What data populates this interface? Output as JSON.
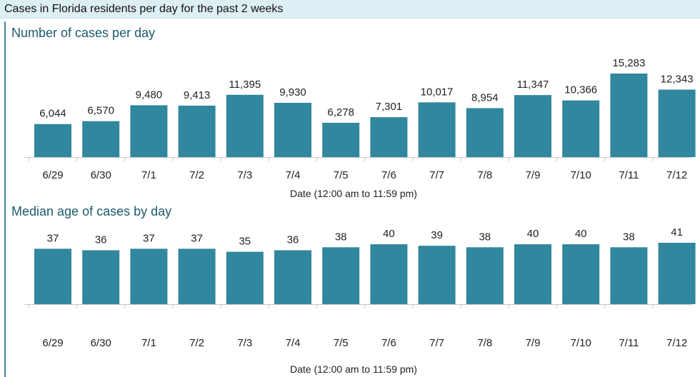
{
  "header": {
    "title": "Cases in Florida residents per day for the past 2 weeks"
  },
  "colors": {
    "bar": "#31879d",
    "axis": "#c8c8c8",
    "header_bg": "#ddeef4",
    "title": "#1d5a6e"
  },
  "chart_data": [
    {
      "type": "bar",
      "title": "Number of cases per day",
      "xlabel": "Date (12:00 am to 11:59 pm)",
      "ylabel": "",
      "categories": [
        "6/29",
        "6/30",
        "7/1",
        "7/2",
        "7/3",
        "7/4",
        "7/5",
        "7/6",
        "7/7",
        "7/8",
        "7/9",
        "7/10",
        "7/11",
        "7/12"
      ],
      "values": [
        6044,
        6570,
        9480,
        9413,
        11395,
        9930,
        6278,
        7301,
        10017,
        8954,
        11347,
        10366,
        15283,
        12343
      ],
      "labels": [
        "6,044",
        "6,570",
        "9,480",
        "9,413",
        "11,395",
        "9,930",
        "6,278",
        "7,301",
        "10,017",
        "8,954",
        "11,347",
        "10,366",
        "15,283",
        "12,343"
      ],
      "ylim": [
        0,
        15283
      ],
      "grid": false,
      "legend": "none"
    },
    {
      "type": "bar",
      "title": "Median age of cases by day",
      "xlabel": "Date (12:00 am to 11:59 pm)",
      "ylabel": "",
      "categories": [
        "6/29",
        "6/30",
        "7/1",
        "7/2",
        "7/3",
        "7/4",
        "7/5",
        "7/6",
        "7/7",
        "7/8",
        "7/9",
        "7/10",
        "7/11",
        "7/12"
      ],
      "values": [
        37,
        36,
        37,
        37,
        35,
        36,
        38,
        40,
        39,
        38,
        40,
        40,
        38,
        41
      ],
      "labels": [
        "37",
        "36",
        "37",
        "37",
        "35",
        "36",
        "38",
        "40",
        "39",
        "38",
        "40",
        "40",
        "38",
        "41"
      ],
      "ylim": [
        0,
        41
      ],
      "grid": false,
      "legend": "none"
    }
  ]
}
